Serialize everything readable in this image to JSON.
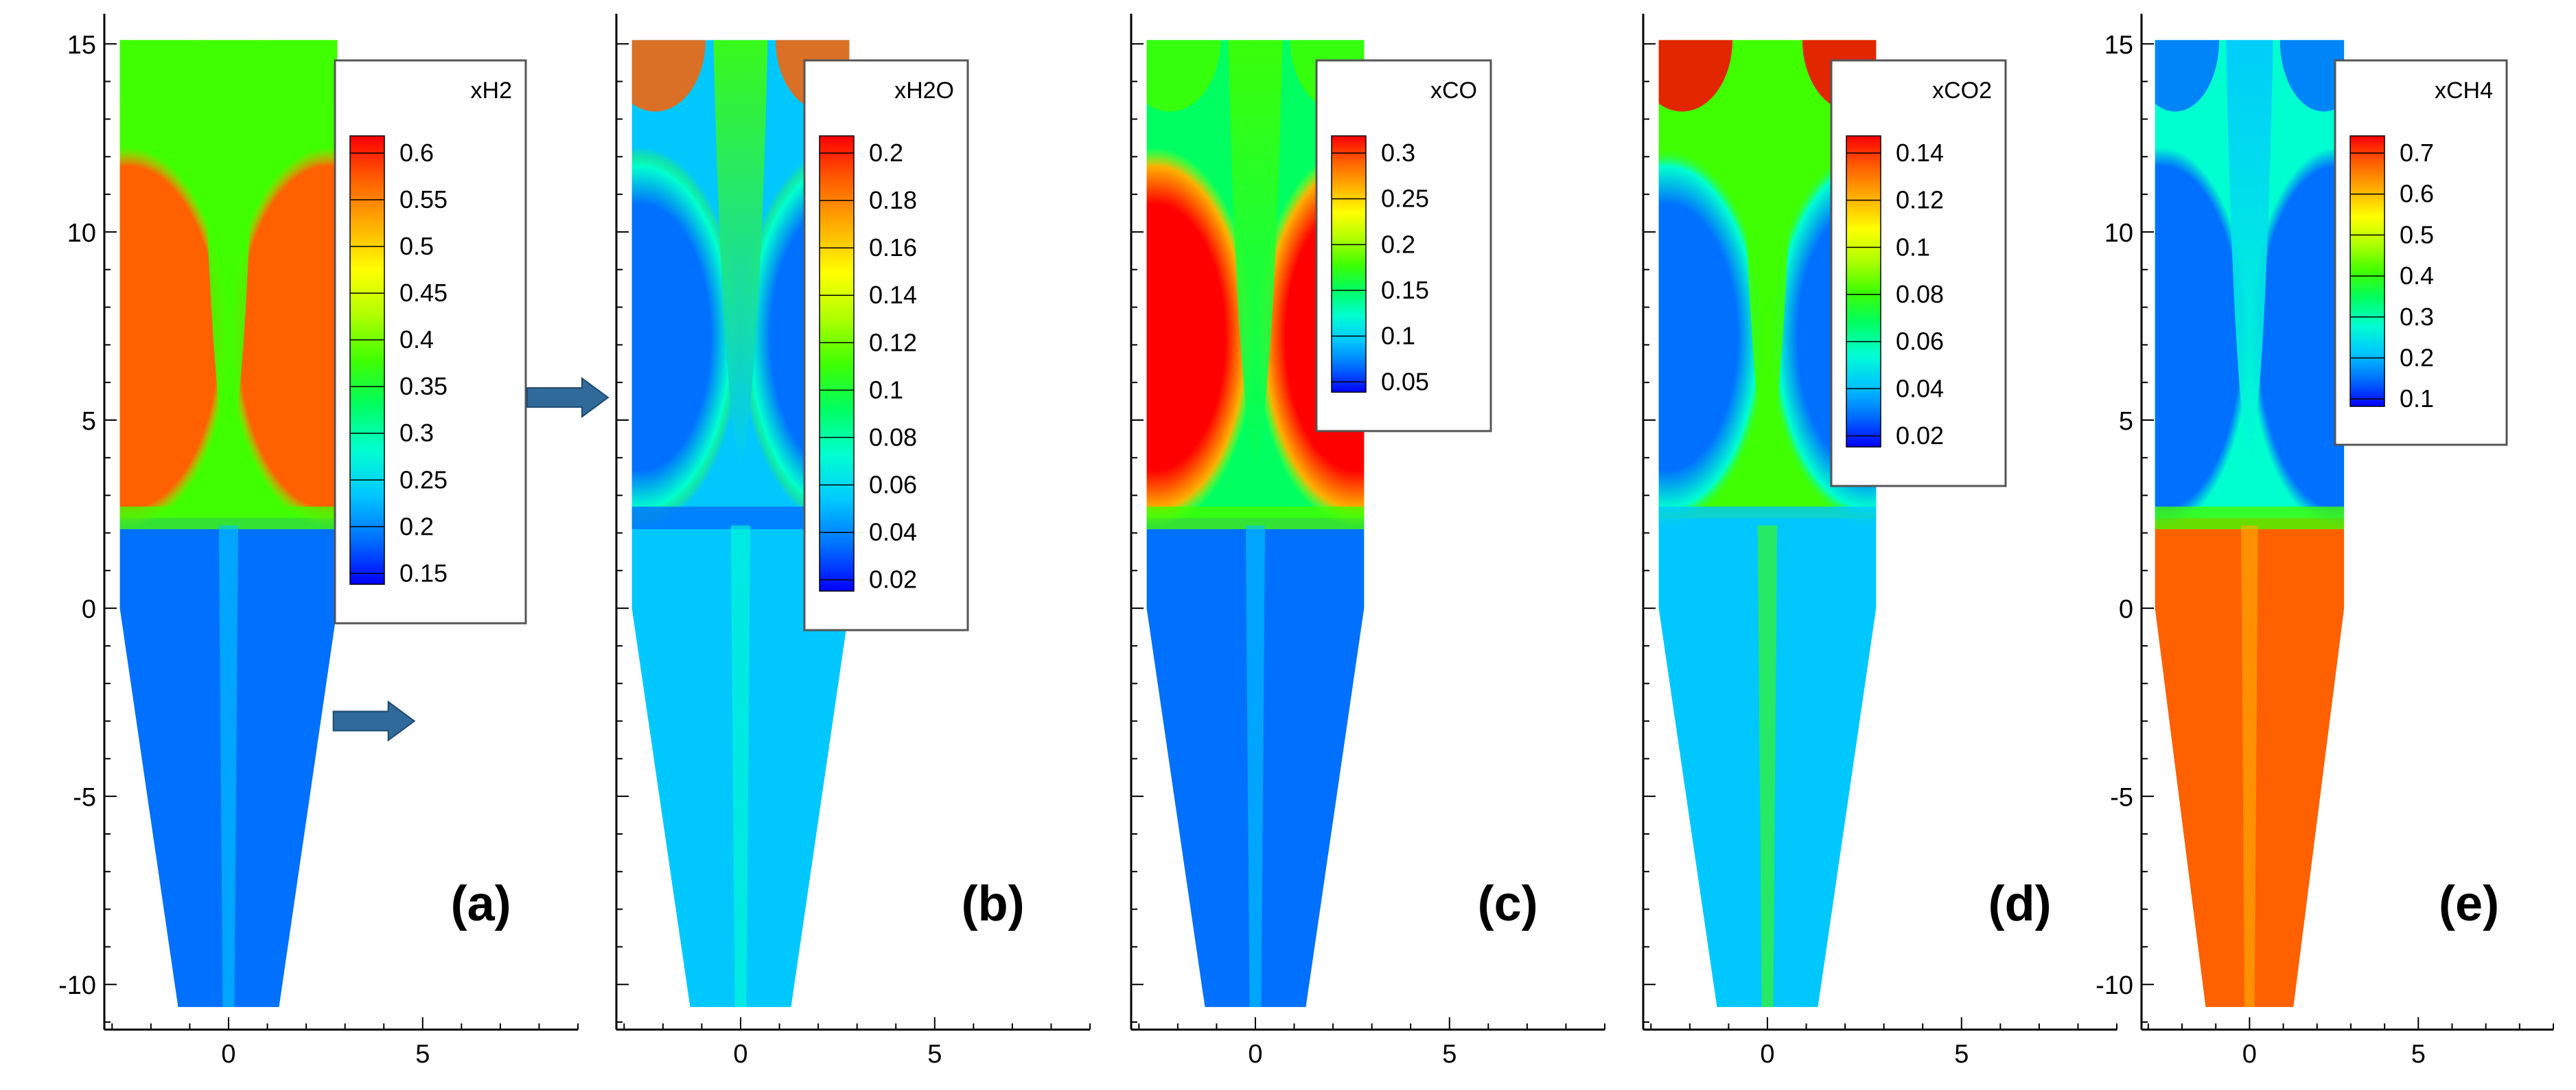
{
  "figure": {
    "description_title": ""
  },
  "colormap": [
    "#0000ff",
    "#0070ff",
    "#00c8ff",
    "#00ffd0",
    "#00ff60",
    "#40ff00",
    "#b0ff00",
    "#ffff00",
    "#ffb000",
    "#ff6000",
    "#ff0000"
  ],
  "chart_data": [
    {
      "type": "heatmap",
      "panel_label": "(a)",
      "variable": "xH2",
      "legend_title": "xH2",
      "legend_levels": [
        "0.6",
        "0.55",
        "0.5",
        "0.45",
        "0.4",
        "0.35",
        "0.3",
        "0.25",
        "0.2",
        "0.15"
      ],
      "x_ticks": [
        "0",
        "5"
      ],
      "y_ticks": [
        "15",
        "10",
        "5",
        "0",
        "-5",
        "-10"
      ],
      "show_y_tick_labels": true,
      "xlim": [
        -3.2,
        9
      ],
      "ylim": [
        -11.2,
        15.8
      ],
      "field": {
        "top": [
          0.45,
          0.48,
          0.45
        ],
        "upper_side": 0.82,
        "mid_side": 0.88,
        "core": 0.5,
        "bottom": 0.1,
        "cone": 0.12
      },
      "arrows": [
        {
          "x": 2.7,
          "y": -3,
          "direction": "right"
        }
      ]
    },
    {
      "type": "heatmap",
      "panel_label": "(b)",
      "variable": "xH2O",
      "legend_title": "xH2O",
      "legend_levels": [
        "0.2",
        "0.18",
        "0.16",
        "0.14",
        "0.12",
        "0.1",
        "0.08",
        "0.06",
        "0.04",
        "0.02"
      ],
      "x_ticks": [
        "0",
        "5"
      ],
      "y_ticks": [
        "15",
        "10",
        "5",
        "0",
        "-5",
        "-10"
      ],
      "show_y_tick_labels": false,
      "xlim": [
        -3.2,
        9
      ],
      "ylim": [
        -11.2,
        15.8
      ],
      "field": {
        "top": [
          0.9,
          0.5,
          0.9
        ],
        "upper_side": 0.45,
        "mid_side": 0.1,
        "core": 0.15,
        "bottom": 0.18,
        "cone": 0.2
      },
      "arrows": [
        {
          "x": -5.5,
          "y": 5.6,
          "direction": "right"
        }
      ]
    },
    {
      "type": "heatmap",
      "panel_label": "(c)",
      "variable": "xCO",
      "legend_title": "xCO",
      "legend_levels": [
        "0.3",
        "0.25",
        "0.2",
        "0.15",
        "0.1",
        "0.05"
      ],
      "x_ticks": [
        "0",
        "5"
      ],
      "y_ticks": [
        "15",
        "10",
        "5",
        "0",
        "-5",
        "-10"
      ],
      "show_y_tick_labels": false,
      "xlim": [
        -3.2,
        9
      ],
      "ylim": [
        -11.2,
        15.8
      ],
      "field": {
        "top": [
          0.45,
          0.45,
          0.45
        ],
        "upper_side": 0.6,
        "mid_side": 1.0,
        "core": 0.4,
        "bottom": 0.05,
        "cone": 0.05
      },
      "arrows": []
    },
    {
      "type": "heatmap",
      "panel_label": "(d)",
      "variable": "xCO2",
      "legend_title": "xCO2",
      "legend_levels": [
        "0.14",
        "0.12",
        "0.1",
        "0.08",
        "0.06",
        "0.04",
        "0.02"
      ],
      "x_ticks": [
        "0",
        "5"
      ],
      "y_ticks": [
        "15",
        "10",
        "5",
        "0",
        "-5",
        "-10"
      ],
      "show_y_tick_labels": false,
      "xlim": [
        -3.2,
        9
      ],
      "ylim": [
        -11.2,
        15.8
      ],
      "field": {
        "top": [
          0.95,
          0.45,
          0.95
        ],
        "upper_side": 0.45,
        "mid_side": 0.05,
        "core": 0.45,
        "bottom": 0.35,
        "cone": 0.2
      },
      "arrows": []
    },
    {
      "type": "heatmap",
      "panel_label": "(e)",
      "variable": "xCH4",
      "legend_title": "xCH4",
      "legend_levels": [
        "0.7",
        "0.6",
        "0.5",
        "0.4",
        "0.3",
        "0.2",
        "0.1"
      ],
      "x_ticks": [
        "0",
        "5"
      ],
      "y_ticks": [
        "15",
        "10",
        "5",
        "0",
        "-5",
        "-10"
      ],
      "show_y_tick_labels": true,
      "xlim": [
        -3.2,
        9
      ],
      "ylim": [
        -11.2,
        15.8
      ],
      "field": {
        "top": [
          0.1,
          0.15,
          0.1
        ],
        "upper_side": 0.08,
        "mid_side": 0.1,
        "core": 0.25,
        "bottom": 0.92,
        "cone": 0.93
      },
      "arrows": []
    }
  ]
}
